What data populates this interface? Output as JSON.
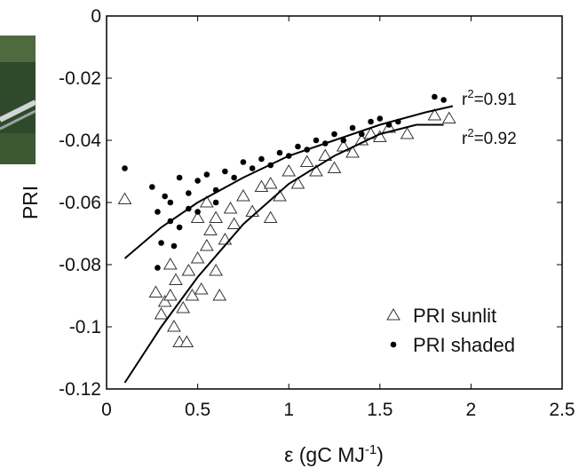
{
  "chart_data": {
    "type": "scatter",
    "y_label": "PRI",
    "x_label": {
      "main": "ε (gC MJ",
      "sup": "-1",
      "end": ")"
    },
    "xlim": [
      0,
      2.5
    ],
    "xticks": [
      0,
      0.5,
      1,
      1.5,
      2,
      2.5
    ],
    "ylim": [
      -0.12,
      0
    ],
    "yticks": [
      -0.12,
      -0.1,
      -0.08,
      -0.06,
      -0.04,
      -0.02,
      0
    ],
    "legend": "lower right",
    "series": [
      {
        "name": "PRI sunlit",
        "marker": "triangle",
        "color": "#333333",
        "x": [
          0.1,
          0.27,
          0.3,
          0.32,
          0.35,
          0.37,
          0.38,
          0.4,
          0.42,
          0.44,
          0.45,
          0.47,
          0.5,
          0.52,
          0.55,
          0.57,
          0.6,
          0.62,
          0.65,
          0.68,
          0.7,
          0.75,
          0.8,
          0.85,
          0.9,
          0.95,
          1.0,
          1.05,
          1.1,
          1.15,
          1.2,
          1.25,
          1.3,
          1.35,
          1.4,
          1.45,
          1.5,
          1.55,
          1.65,
          1.8,
          1.88,
          0.55,
          0.6,
          0.9,
          0.5,
          0.35
        ],
        "y": [
          -0.059,
          -0.089,
          -0.096,
          -0.092,
          -0.09,
          -0.1,
          -0.085,
          -0.105,
          -0.094,
          -0.105,
          -0.082,
          -0.09,
          -0.078,
          -0.088,
          -0.074,
          -0.069,
          -0.065,
          -0.09,
          -0.072,
          -0.062,
          -0.067,
          -0.058,
          -0.063,
          -0.055,
          -0.065,
          -0.058,
          -0.05,
          -0.054,
          -0.047,
          -0.05,
          -0.045,
          -0.049,
          -0.042,
          -0.044,
          -0.04,
          -0.038,
          -0.039,
          -0.036,
          -0.038,
          -0.032,
          -0.033,
          -0.06,
          -0.082,
          -0.054,
          -0.065,
          -0.08
        ]
      },
      {
        "name": "PRI shaded",
        "marker": "dot",
        "color": "#000000",
        "x": [
          0.1,
          0.25,
          0.28,
          0.3,
          0.32,
          0.35,
          0.37,
          0.4,
          0.4,
          0.45,
          0.5,
          0.5,
          0.55,
          0.6,
          0.65,
          0.7,
          0.75,
          0.8,
          0.85,
          0.9,
          0.95,
          1.0,
          1.05,
          1.1,
          1.15,
          1.2,
          1.25,
          1.3,
          1.35,
          1.4,
          1.45,
          1.5,
          1.55,
          1.6,
          1.8,
          1.85,
          0.28,
          0.6,
          0.35,
          0.45
        ],
        "y": [
          -0.049,
          -0.055,
          -0.063,
          -0.073,
          -0.058,
          -0.06,
          -0.074,
          -0.068,
          -0.052,
          -0.057,
          -0.053,
          -0.063,
          -0.051,
          -0.056,
          -0.05,
          -0.052,
          -0.047,
          -0.049,
          -0.046,
          -0.048,
          -0.044,
          -0.045,
          -0.042,
          -0.043,
          -0.04,
          -0.041,
          -0.038,
          -0.04,
          -0.036,
          -0.038,
          -0.034,
          -0.033,
          -0.035,
          -0.034,
          -0.026,
          -0.027,
          -0.081,
          -0.06,
          -0.066,
          -0.062
        ]
      }
    ],
    "fits": [
      {
        "x": [
          0.1,
          0.3,
          0.5,
          0.75,
          1,
          1.25,
          1.5,
          1.75,
          1.9
        ],
        "y": [
          -0.078,
          -0.068,
          -0.06,
          -0.052,
          -0.045,
          -0.04,
          -0.035,
          -0.031,
          -0.029
        ]
      },
      {
        "x": [
          0.1,
          0.3,
          0.5,
          0.75,
          1,
          1.25,
          1.5,
          1.7,
          1.85
        ],
        "y": [
          -0.118,
          -0.1,
          -0.084,
          -0.067,
          -0.054,
          -0.045,
          -0.038,
          -0.035,
          -0.035
        ]
      }
    ],
    "annotations": [
      {
        "text": "r",
        "sup": "2",
        "rest": "=0.91"
      },
      {
        "text": "r",
        "sup": "2",
        "rest": "=0.92"
      }
    ]
  }
}
